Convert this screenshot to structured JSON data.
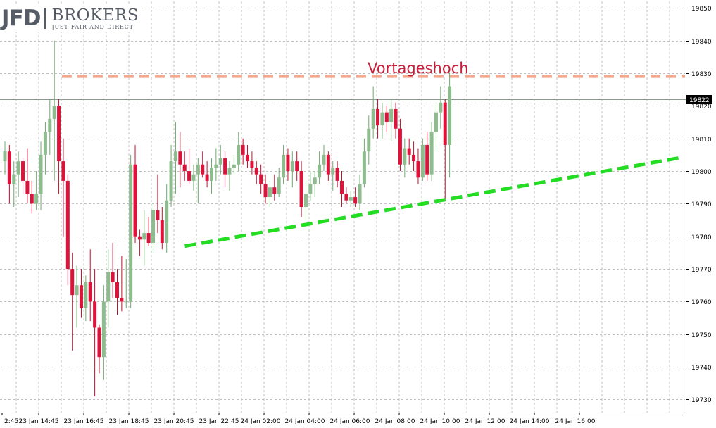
{
  "brand": {
    "mark": "JFD",
    "name": "BROKERS",
    "tagline": "JUST FAIR AND DIRECT"
  },
  "colors": {
    "up": "#8fbc8f",
    "down": "#dc143c",
    "grid": "#c0c0c0",
    "resistance": "#f4a98f",
    "support": "#22dd22",
    "annotation": "#c8203a"
  },
  "chart_data": {
    "type": "candlestick",
    "y_ticks": [
      19850,
      19840,
      19830,
      19820,
      19810,
      19800,
      19790,
      19780,
      19770,
      19760,
      19750,
      19740,
      19730
    ],
    "ylim": [
      19726,
      19852
    ],
    "current_price_label": "19822",
    "current_price": 19822,
    "x_tick_labels": [
      "2:45",
      "23 Jan 14:45",
      "23 Jan 16:45",
      "23 Jan 18:45",
      "23 Jan 20:45",
      "23 Jan 22:45",
      "24 Jan 02:00",
      "24 Jan 04:00",
      "24 Jan 06:00",
      "24 Jan 08:00",
      "24 Jan 10:00",
      "24 Jan 12:00",
      "24 Jan 14:00",
      "24 Jan 16:00"
    ],
    "annotations": [
      {
        "text": "Vortageshoch",
        "level": 19829
      }
    ],
    "resistance_line": {
      "price": 19829
    },
    "support_line": {
      "from_candle": 41,
      "from_price": 19777,
      "to_candle": 150,
      "to_price": 19804
    },
    "candles": [
      [
        19803,
        19809,
        19799,
        19806
      ],
      [
        19806,
        19808,
        19790,
        19796
      ],
      [
        19796,
        19803,
        19789,
        19799
      ],
      [
        19799,
        19806,
        19792,
        19803
      ],
      [
        19803,
        19804,
        19793,
        19797
      ],
      [
        19797,
        19807,
        19790,
        19793
      ],
      [
        19793,
        19797,
        19787,
        19790
      ],
      [
        19790,
        19800,
        19788,
        19793
      ],
      [
        19793,
        19809,
        19788,
        19805
      ],
      [
        19805,
        19815,
        19799,
        19812
      ],
      [
        19812,
        19822,
        19805,
        19816
      ],
      [
        19816,
        19840,
        19797,
        19820
      ],
      [
        19820,
        19822,
        19793,
        19803
      ],
      [
        19803,
        19810,
        19780,
        19797
      ],
      [
        19797,
        19799,
        19765,
        19770
      ],
      [
        19770,
        19775,
        19745,
        19762
      ],
      [
        19762,
        19771,
        19752,
        19765
      ],
      [
        19765,
        19770,
        19755,
        19758
      ],
      [
        19758,
        19768,
        19754,
        19766
      ],
      [
        19766,
        19776,
        19754,
        19760
      ],
      [
        19760,
        19770,
        19731,
        19752
      ],
      [
        19752,
        19753,
        19738,
        19743
      ],
      [
        19743,
        19765,
        19736,
        19760
      ],
      [
        19760,
        19776,
        19752,
        19769
      ],
      [
        19769,
        19778,
        19761,
        19766
      ],
      [
        19766,
        19770,
        19756,
        19761
      ],
      [
        19761,
        19774,
        19757,
        19760
      ],
      [
        19760,
        19773,
        19758,
        19760
      ],
      [
        19760,
        19805,
        19758,
        19802
      ],
      [
        19802,
        19808,
        19778,
        19780
      ],
      [
        19780,
        19782,
        19774,
        19779
      ],
      [
        19779,
        19788,
        19771,
        19781
      ],
      [
        19781,
        19786,
        19777,
        19778
      ],
      [
        19778,
        19790,
        19775,
        19788
      ],
      [
        19788,
        19799,
        19781,
        19785
      ],
      [
        19785,
        19789,
        19776,
        19778
      ],
      [
        19778,
        19796,
        19775,
        19791
      ],
      [
        19791,
        19808,
        19789,
        19803
      ],
      [
        19803,
        19815,
        19793,
        19806
      ],
      [
        19806,
        19812,
        19795,
        19802
      ],
      [
        19802,
        19806,
        19797,
        19800
      ],
      [
        19800,
        19807,
        19796,
        19797
      ],
      [
        19797,
        19802,
        19794,
        19799
      ],
      [
        19799,
        19804,
        19790,
        19802
      ],
      [
        19802,
        19806,
        19798,
        19799
      ],
      [
        19799,
        19803,
        19795,
        19797
      ],
      [
        19797,
        19804,
        19793,
        19801
      ],
      [
        19801,
        19807,
        19797,
        19802
      ],
      [
        19802,
        19808,
        19799,
        19804
      ],
      [
        19804,
        19806,
        19795,
        19799
      ],
      [
        19799,
        19803,
        19794,
        19801
      ],
      [
        19801,
        19805,
        19799,
        19802
      ],
      [
        19802,
        19812,
        19800,
        19808
      ],
      [
        19808,
        19810,
        19802,
        19805
      ],
      [
        19805,
        19808,
        19801,
        19803
      ],
      [
        19803,
        19806,
        19799,
        19801
      ],
      [
        19801,
        19803,
        19796,
        19799
      ],
      [
        19799,
        19802,
        19793,
        19796
      ],
      [
        19796,
        19799,
        19790,
        19792
      ],
      [
        19792,
        19797,
        19789,
        19795
      ],
      [
        19795,
        19799,
        19791,
        19793
      ],
      [
        19793,
        19801,
        19792,
        19798
      ],
      [
        19798,
        19808,
        19796,
        19805
      ],
      [
        19805,
        19807,
        19797,
        19800
      ],
      [
        19800,
        19806,
        19795,
        19803
      ],
      [
        19803,
        19806,
        19797,
        19800
      ],
      [
        19800,
        19803,
        19786,
        19789
      ],
      [
        19789,
        19797,
        19785,
        19793
      ],
      [
        19793,
        19800,
        19791,
        19796
      ],
      [
        19796,
        19800,
        19792,
        19798
      ],
      [
        19798,
        19806,
        19796,
        19802
      ],
      [
        19802,
        19808,
        19800,
        19805
      ],
      [
        19805,
        19806,
        19797,
        19799
      ],
      [
        19799,
        19803,
        19794,
        19801
      ],
      [
        19801,
        19803,
        19795,
        19797
      ],
      [
        19797,
        19800,
        19789,
        19793
      ],
      [
        19793,
        19795,
        19790,
        19791
      ],
      [
        19791,
        19794,
        19789,
        19792
      ],
      [
        19792,
        19795,
        19789,
        19790
      ],
      [
        19790,
        19799,
        19788,
        19796
      ],
      [
        19796,
        19810,
        19795,
        19806
      ],
      [
        19806,
        19817,
        19802,
        19813
      ],
      [
        19813,
        19826,
        19810,
        19819
      ],
      [
        19819,
        19822,
        19810,
        19814
      ],
      [
        19814,
        19821,
        19810,
        19818
      ],
      [
        19818,
        19820,
        19812,
        19815
      ],
      [
        19815,
        19822,
        19809,
        19819
      ],
      [
        19819,
        19821,
        19810,
        19813
      ],
      [
        19813,
        19816,
        19800,
        19802
      ],
      [
        19802,
        19810,
        19798,
        19807
      ],
      [
        19807,
        19810,
        19802,
        19805
      ],
      [
        19805,
        19809,
        19800,
        19803
      ],
      [
        19803,
        19807,
        19796,
        19798
      ],
      [
        19798,
        19810,
        19797,
        19808
      ],
      [
        19808,
        19812,
        19797,
        19799
      ],
      [
        19799,
        19815,
        19797,
        19812
      ],
      [
        19812,
        19821,
        19806,
        19818
      ],
      [
        19818,
        19826,
        19813,
        19821
      ],
      [
        19821,
        19822,
        19791,
        19808
      ],
      [
        19808,
        19830,
        19798,
        19826
      ]
    ]
  }
}
